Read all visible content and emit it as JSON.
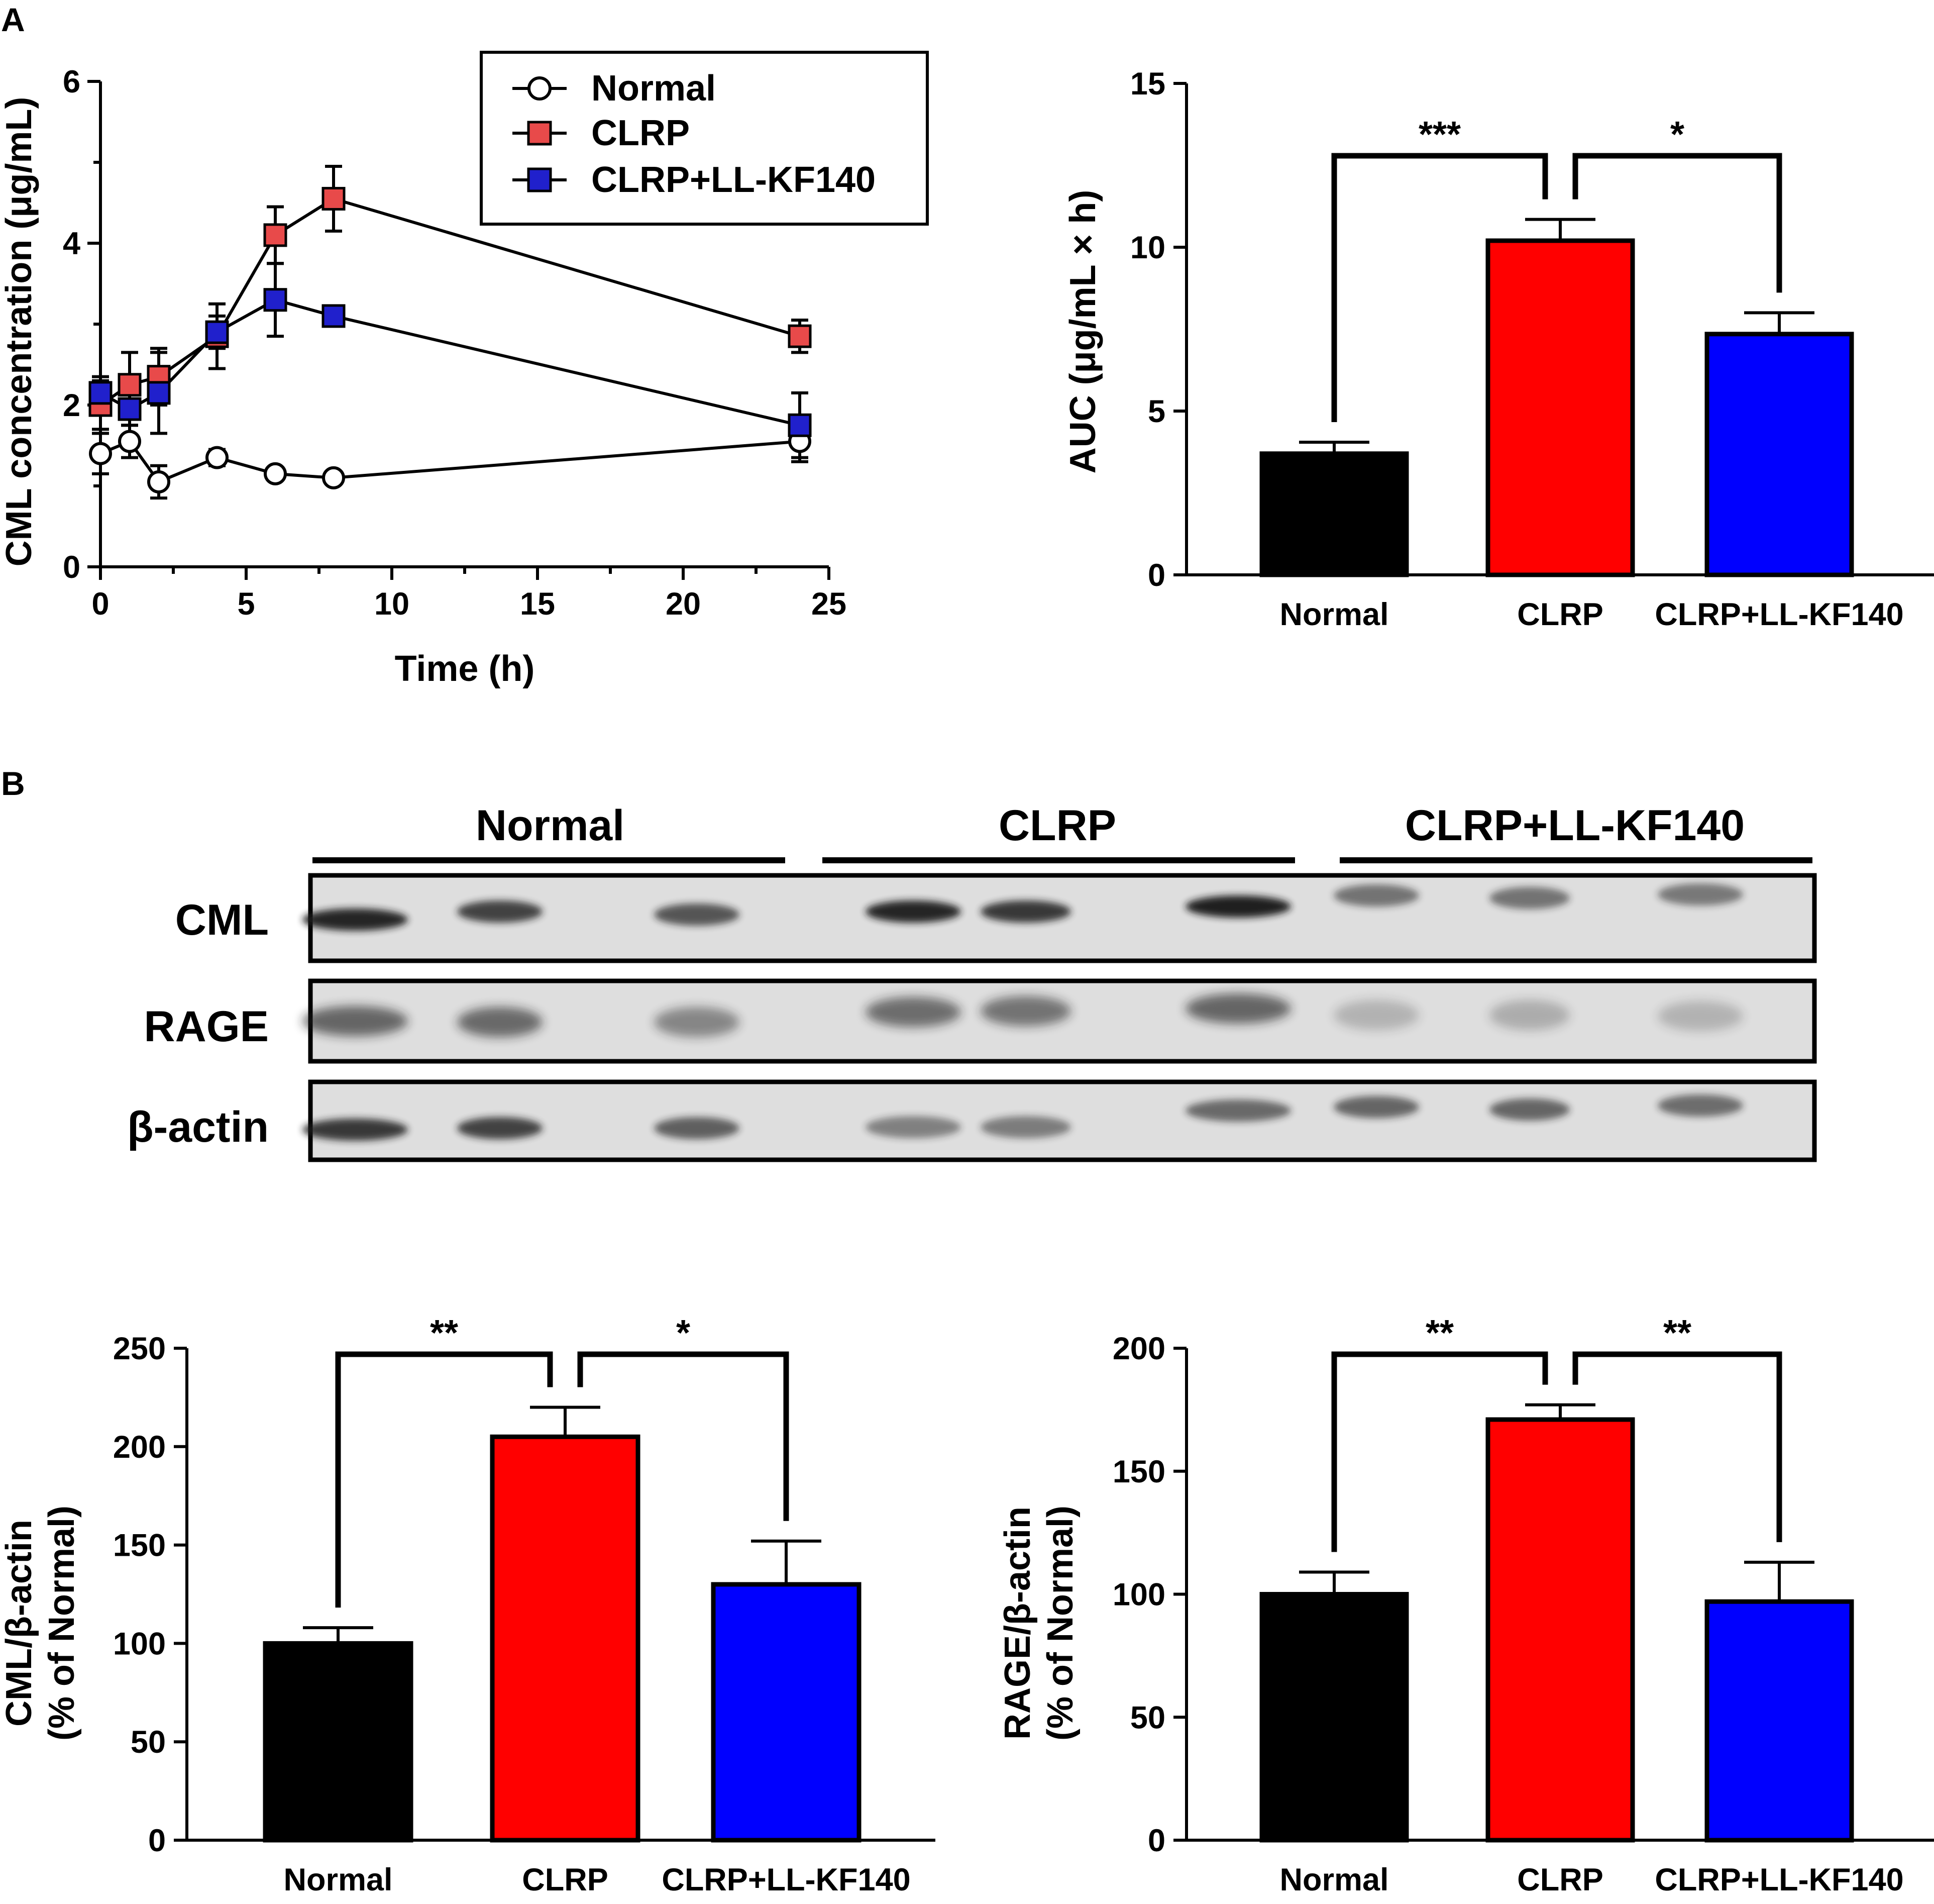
{
  "figure": {
    "panel_a_label": "A",
    "panel_b_label": "B"
  },
  "colors": {
    "normal": "#000000",
    "clrp": "#FF0000",
    "clrp_ll": "#0000FF",
    "marker_normal": "#FFFFFF",
    "marker_clrp": "#E84A4A",
    "marker_clrp_ll": "#2020CC"
  },
  "blot": {
    "groups": [
      "Normal",
      "CLRP",
      "CLRP+LL-KF140"
    ],
    "rows": [
      "CML",
      "RAGE",
      "β-actin"
    ],
    "lanes_per_group": 3
  },
  "chart_data": [
    {
      "id": "time_course",
      "type": "line",
      "xlabel": "Time (h)",
      "ylabel": "CML concentration (μg/mL)",
      "xlim": [
        0,
        25
      ],
      "ylim": [
        0,
        6
      ],
      "xticks": [
        "0",
        "5",
        "10",
        "15",
        "20",
        "25"
      ],
      "yticks": [
        "0",
        "2",
        "4",
        "6"
      ],
      "x": [
        0,
        1,
        2,
        4,
        6,
        8,
        24
      ],
      "legend_position": "top-center",
      "series": [
        {
          "name": "Normal",
          "marker": "circle",
          "values": [
            1.4,
            1.55,
            1.05,
            1.35,
            1.15,
            1.1,
            1.55
          ],
          "errors": [
            0.25,
            0.2,
            0.2,
            0.1,
            0.05,
            0.05,
            0.25
          ]
        },
        {
          "name": "CLRP",
          "marker": "square",
          "values": [
            2.0,
            2.25,
            2.35,
            2.85,
            4.1,
            4.55,
            2.85
          ],
          "errors": [
            0.3,
            0.4,
            0.35,
            0.4,
            0.35,
            0.4,
            0.2
          ]
        },
        {
          "name": "CLRP+LL-KF140",
          "marker": "square",
          "values": [
            2.15,
            1.95,
            2.15,
            2.9,
            3.3,
            3.1,
            1.75
          ],
          "errors": [
            0.2,
            0.2,
            0.5,
            0.2,
            0.45,
            0.1,
            0.4
          ]
        }
      ]
    },
    {
      "id": "auc",
      "type": "bar",
      "ylabel": "AUC (μg/mL × h)",
      "ylim": [
        0,
        15
      ],
      "yticks": [
        "0",
        "5",
        "10",
        "15"
      ],
      "categories": [
        "Normal",
        "CLRP",
        "CLRP+LL-KF140"
      ],
      "values": [
        3.7,
        10.2,
        7.35
      ],
      "errors": [
        0.35,
        0.65,
        0.65
      ],
      "significance": [
        {
          "from": 0,
          "to": 1,
          "label": "***"
        },
        {
          "from": 1,
          "to": 2,
          "label": "*"
        }
      ]
    },
    {
      "id": "cml_actin",
      "type": "bar",
      "ylabel": [
        "CML/β-actin",
        "(% of Normal)"
      ],
      "ylim": [
        0,
        250
      ],
      "yticks": [
        "0",
        "50",
        "100",
        "150",
        "200",
        "250"
      ],
      "categories": [
        "Normal",
        "CLRP",
        "CLRP+LL-KF140"
      ],
      "values": [
        100,
        205,
        130
      ],
      "errors": [
        8,
        15,
        22
      ],
      "significance": [
        {
          "from": 0,
          "to": 1,
          "label": "**"
        },
        {
          "from": 1,
          "to": 2,
          "label": "*"
        }
      ]
    },
    {
      "id": "rage_actin",
      "type": "bar",
      "ylabel": [
        "RAGE/β-actin",
        "(% of Normal)"
      ],
      "ylim": [
        0,
        200
      ],
      "yticks": [
        "0",
        "50",
        "100",
        "150",
        "200"
      ],
      "categories": [
        "Normal",
        "CLRP",
        "CLRP+LL-KF140"
      ],
      "values": [
        100,
        171,
        97
      ],
      "errors": [
        9,
        6,
        16
      ],
      "significance": [
        {
          "from": 0,
          "to": 1,
          "label": "**"
        },
        {
          "from": 1,
          "to": 2,
          "label": "**"
        }
      ]
    }
  ]
}
